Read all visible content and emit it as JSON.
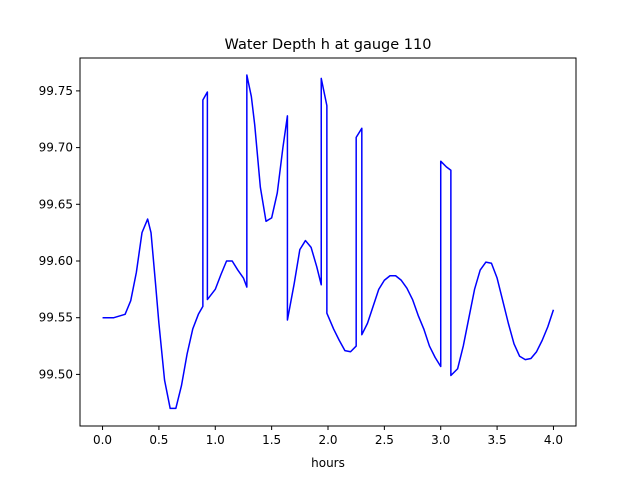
{
  "chart_data": {
    "type": "line",
    "title": "Water Depth h at gauge 110",
    "xlabel": "hours",
    "ylabel": "",
    "xlim": [
      -0.2,
      4.2
    ],
    "ylim": [
      99.4545,
      99.779
    ],
    "xticks": [
      0.0,
      0.5,
      1.0,
      1.5,
      2.0,
      2.5,
      3.0,
      3.5,
      4.0
    ],
    "xtick_labels": [
      "0.0",
      "0.5",
      "1.0",
      "1.5",
      "2.0",
      "2.5",
      "3.0",
      "3.5",
      "4.0"
    ],
    "yticks": [
      99.5,
      99.55,
      99.6,
      99.65,
      99.7,
      99.75
    ],
    "ytick_labels": [
      "99.50",
      "99.55",
      "99.60",
      "99.65",
      "99.70",
      "99.75"
    ],
    "grid": false,
    "legend": "none",
    "series": [
      {
        "color": "#0000ff",
        "x": [
          0.0,
          0.1,
          0.2,
          0.25,
          0.3,
          0.35,
          0.4,
          0.43,
          0.47,
          0.5,
          0.55,
          0.6,
          0.65,
          0.7,
          0.75,
          0.8,
          0.85,
          0.89,
          0.89,
          0.93,
          0.93,
          1.0,
          1.05,
          1.1,
          1.15,
          1.2,
          1.25,
          1.28,
          1.28,
          1.32,
          1.35,
          1.4,
          1.45,
          1.5,
          1.55,
          1.6,
          1.64,
          1.64,
          1.7,
          1.75,
          1.8,
          1.85,
          1.9,
          1.94,
          1.94,
          1.99,
          1.99,
          2.05,
          2.1,
          2.15,
          2.2,
          2.25,
          2.25,
          2.3,
          2.3,
          2.35,
          2.4,
          2.45,
          2.5,
          2.55,
          2.6,
          2.65,
          2.7,
          2.75,
          2.8,
          2.85,
          2.9,
          2.95,
          3.0,
          3.0,
          3.05,
          3.09,
          3.09,
          3.15,
          3.2,
          3.25,
          3.3,
          3.35,
          3.4,
          3.45,
          3.5,
          3.55,
          3.6,
          3.65,
          3.7,
          3.75,
          3.8,
          3.85,
          3.9,
          3.95,
          4.0
        ],
        "y": [
          99.55,
          99.55,
          99.553,
          99.565,
          99.59,
          99.625,
          99.637,
          99.625,
          99.58,
          99.545,
          99.495,
          99.47,
          99.47,
          99.49,
          99.518,
          99.54,
          99.553,
          99.56,
          99.742,
          99.749,
          99.566,
          99.575,
          99.588,
          99.6,
          99.6,
          99.592,
          99.585,
          99.577,
          99.764,
          99.745,
          99.72,
          99.665,
          99.635,
          99.638,
          99.66,
          99.7,
          99.728,
          99.548,
          99.58,
          99.61,
          99.618,
          99.612,
          99.595,
          99.579,
          99.761,
          99.737,
          99.554,
          99.54,
          99.53,
          99.521,
          99.52,
          99.525,
          99.709,
          99.717,
          99.535,
          99.545,
          99.56,
          99.575,
          99.583,
          99.587,
          99.587,
          99.583,
          99.576,
          99.566,
          99.552,
          99.54,
          99.525,
          99.515,
          99.507,
          99.688,
          99.683,
          99.68,
          99.499,
          99.505,
          99.525,
          99.55,
          99.575,
          99.592,
          99.599,
          99.598,
          99.585,
          99.565,
          99.545,
          99.527,
          99.516,
          99.513,
          99.514,
          99.52,
          99.53,
          99.542,
          99.557
        ]
      }
    ]
  }
}
